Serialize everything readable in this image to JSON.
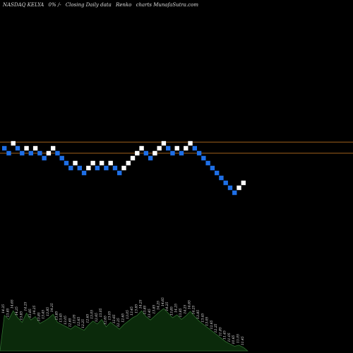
{
  "header": {
    "symbol": "NASDAQ KELYA",
    "change": "0% /-",
    "chart_kind": "Closing Daily data",
    "chart_style": "Renko",
    "credit": "charts MunafaSutra.com"
  },
  "colors": {
    "background": "#000000",
    "up_brick": "#ffffff",
    "down_brick": "#1e6fe6",
    "reference_line": "#a0601c",
    "volume_fill": "#0b2a0b",
    "volume_edge": "#2f6f2f"
  },
  "chart_data": {
    "type": "renko",
    "reference_lines": [
      14.75,
      13.85
    ],
    "bricks": [
      {
        "close": 14.25,
        "dir": "down"
      },
      {
        "close": 13.85,
        "dir": "down"
      },
      {
        "close": 14.65,
        "dir": "up"
      },
      {
        "close": 14.25,
        "dir": "down"
      },
      {
        "close": 13.85,
        "dir": "down"
      },
      {
        "close": 14.25,
        "dir": "up"
      },
      {
        "close": 13.85,
        "dir": "down"
      },
      {
        "close": 14.25,
        "dir": "up"
      },
      {
        "close": 13.85,
        "dir": "down"
      },
      {
        "close": 13.45,
        "dir": "down"
      },
      {
        "close": 13.85,
        "dir": "up"
      },
      {
        "close": 14.25,
        "dir": "up"
      },
      {
        "close": 13.85,
        "dir": "down"
      },
      {
        "close": 13.45,
        "dir": "down"
      },
      {
        "close": 13.05,
        "dir": "down"
      },
      {
        "close": 12.65,
        "dir": "down"
      },
      {
        "close": 13.05,
        "dir": "up"
      },
      {
        "close": 12.65,
        "dir": "down"
      },
      {
        "close": 12.25,
        "dir": "down"
      },
      {
        "close": 12.65,
        "dir": "up"
      },
      {
        "close": 13.05,
        "dir": "up"
      },
      {
        "close": 12.65,
        "dir": "down"
      },
      {
        "close": 13.05,
        "dir": "up"
      },
      {
        "close": 12.65,
        "dir": "down"
      },
      {
        "close": 13.05,
        "dir": "up"
      },
      {
        "close": 12.65,
        "dir": "down"
      },
      {
        "close": 12.25,
        "dir": "down"
      },
      {
        "close": 12.65,
        "dir": "up"
      },
      {
        "close": 13.05,
        "dir": "up"
      },
      {
        "close": 13.45,
        "dir": "up"
      },
      {
        "close": 13.85,
        "dir": "up"
      },
      {
        "close": 14.25,
        "dir": "up"
      },
      {
        "close": 13.85,
        "dir": "down"
      },
      {
        "close": 13.45,
        "dir": "down"
      },
      {
        "close": 13.85,
        "dir": "up"
      },
      {
        "close": 14.25,
        "dir": "up"
      },
      {
        "close": 14.65,
        "dir": "up"
      },
      {
        "close": 14.25,
        "dir": "down"
      },
      {
        "close": 13.85,
        "dir": "down"
      },
      {
        "close": 14.25,
        "dir": "up"
      },
      {
        "close": 13.85,
        "dir": "down"
      },
      {
        "close": 14.25,
        "dir": "up"
      },
      {
        "close": 14.65,
        "dir": "up"
      },
      {
        "close": 14.25,
        "dir": "down"
      },
      {
        "close": 13.85,
        "dir": "down"
      },
      {
        "close": 13.45,
        "dir": "down"
      },
      {
        "close": 13.05,
        "dir": "down"
      },
      {
        "close": 12.65,
        "dir": "down"
      },
      {
        "close": 12.25,
        "dir": "down"
      },
      {
        "close": 11.85,
        "dir": "down"
      },
      {
        "close": 11.45,
        "dir": "down"
      },
      {
        "close": 11.05,
        "dir": "down"
      },
      {
        "close": 10.65,
        "dir": "down"
      },
      {
        "close": 11.05,
        "dir": "up"
      },
      {
        "close": 11.45,
        "dir": "up"
      }
    ],
    "volume_labels": [
      "14.25",
      "13.85",
      "14.65",
      "14.25",
      "13.85",
      "14.25",
      "13.85",
      "14.25",
      "13.85",
      "13.45",
      "13.85",
      "14.25",
      "13.85",
      "13.45",
      "13.05",
      "12.65",
      "13.05",
      "12.65",
      "12.25",
      "12.65",
      "13.05",
      "12.65",
      "13.05",
      "12.65",
      "13.05",
      "12.65",
      "12.25",
      "12.65",
      "13.05",
      "13.45",
      "13.85",
      "14.25",
      "13.85",
      "13.45",
      "13.85",
      "14.25",
      "14.65",
      "14.25",
      "13.85",
      "14.25",
      "13.85",
      "14.25",
      "14.65",
      "14.25",
      "13.85",
      "13.45",
      "13.05",
      "12.65",
      "12.25",
      "11.85",
      "11.45",
      "11.05",
      "10.65",
      "11.05",
      "11.45"
    ],
    "volume": [
      62,
      55,
      70,
      58,
      50,
      66,
      54,
      60,
      48,
      52,
      57,
      64,
      50,
      46,
      42,
      38,
      44,
      40,
      36,
      45,
      52,
      47,
      55,
      42,
      50,
      44,
      38,
      46,
      52,
      58,
      62,
      70,
      60,
      54,
      61,
      68,
      74,
      66,
      58,
      63,
      55,
      61,
      69,
      60,
      52,
      46,
      40,
      34,
      28,
      22,
      16,
      12,
      8,
      10,
      6
    ]
  }
}
